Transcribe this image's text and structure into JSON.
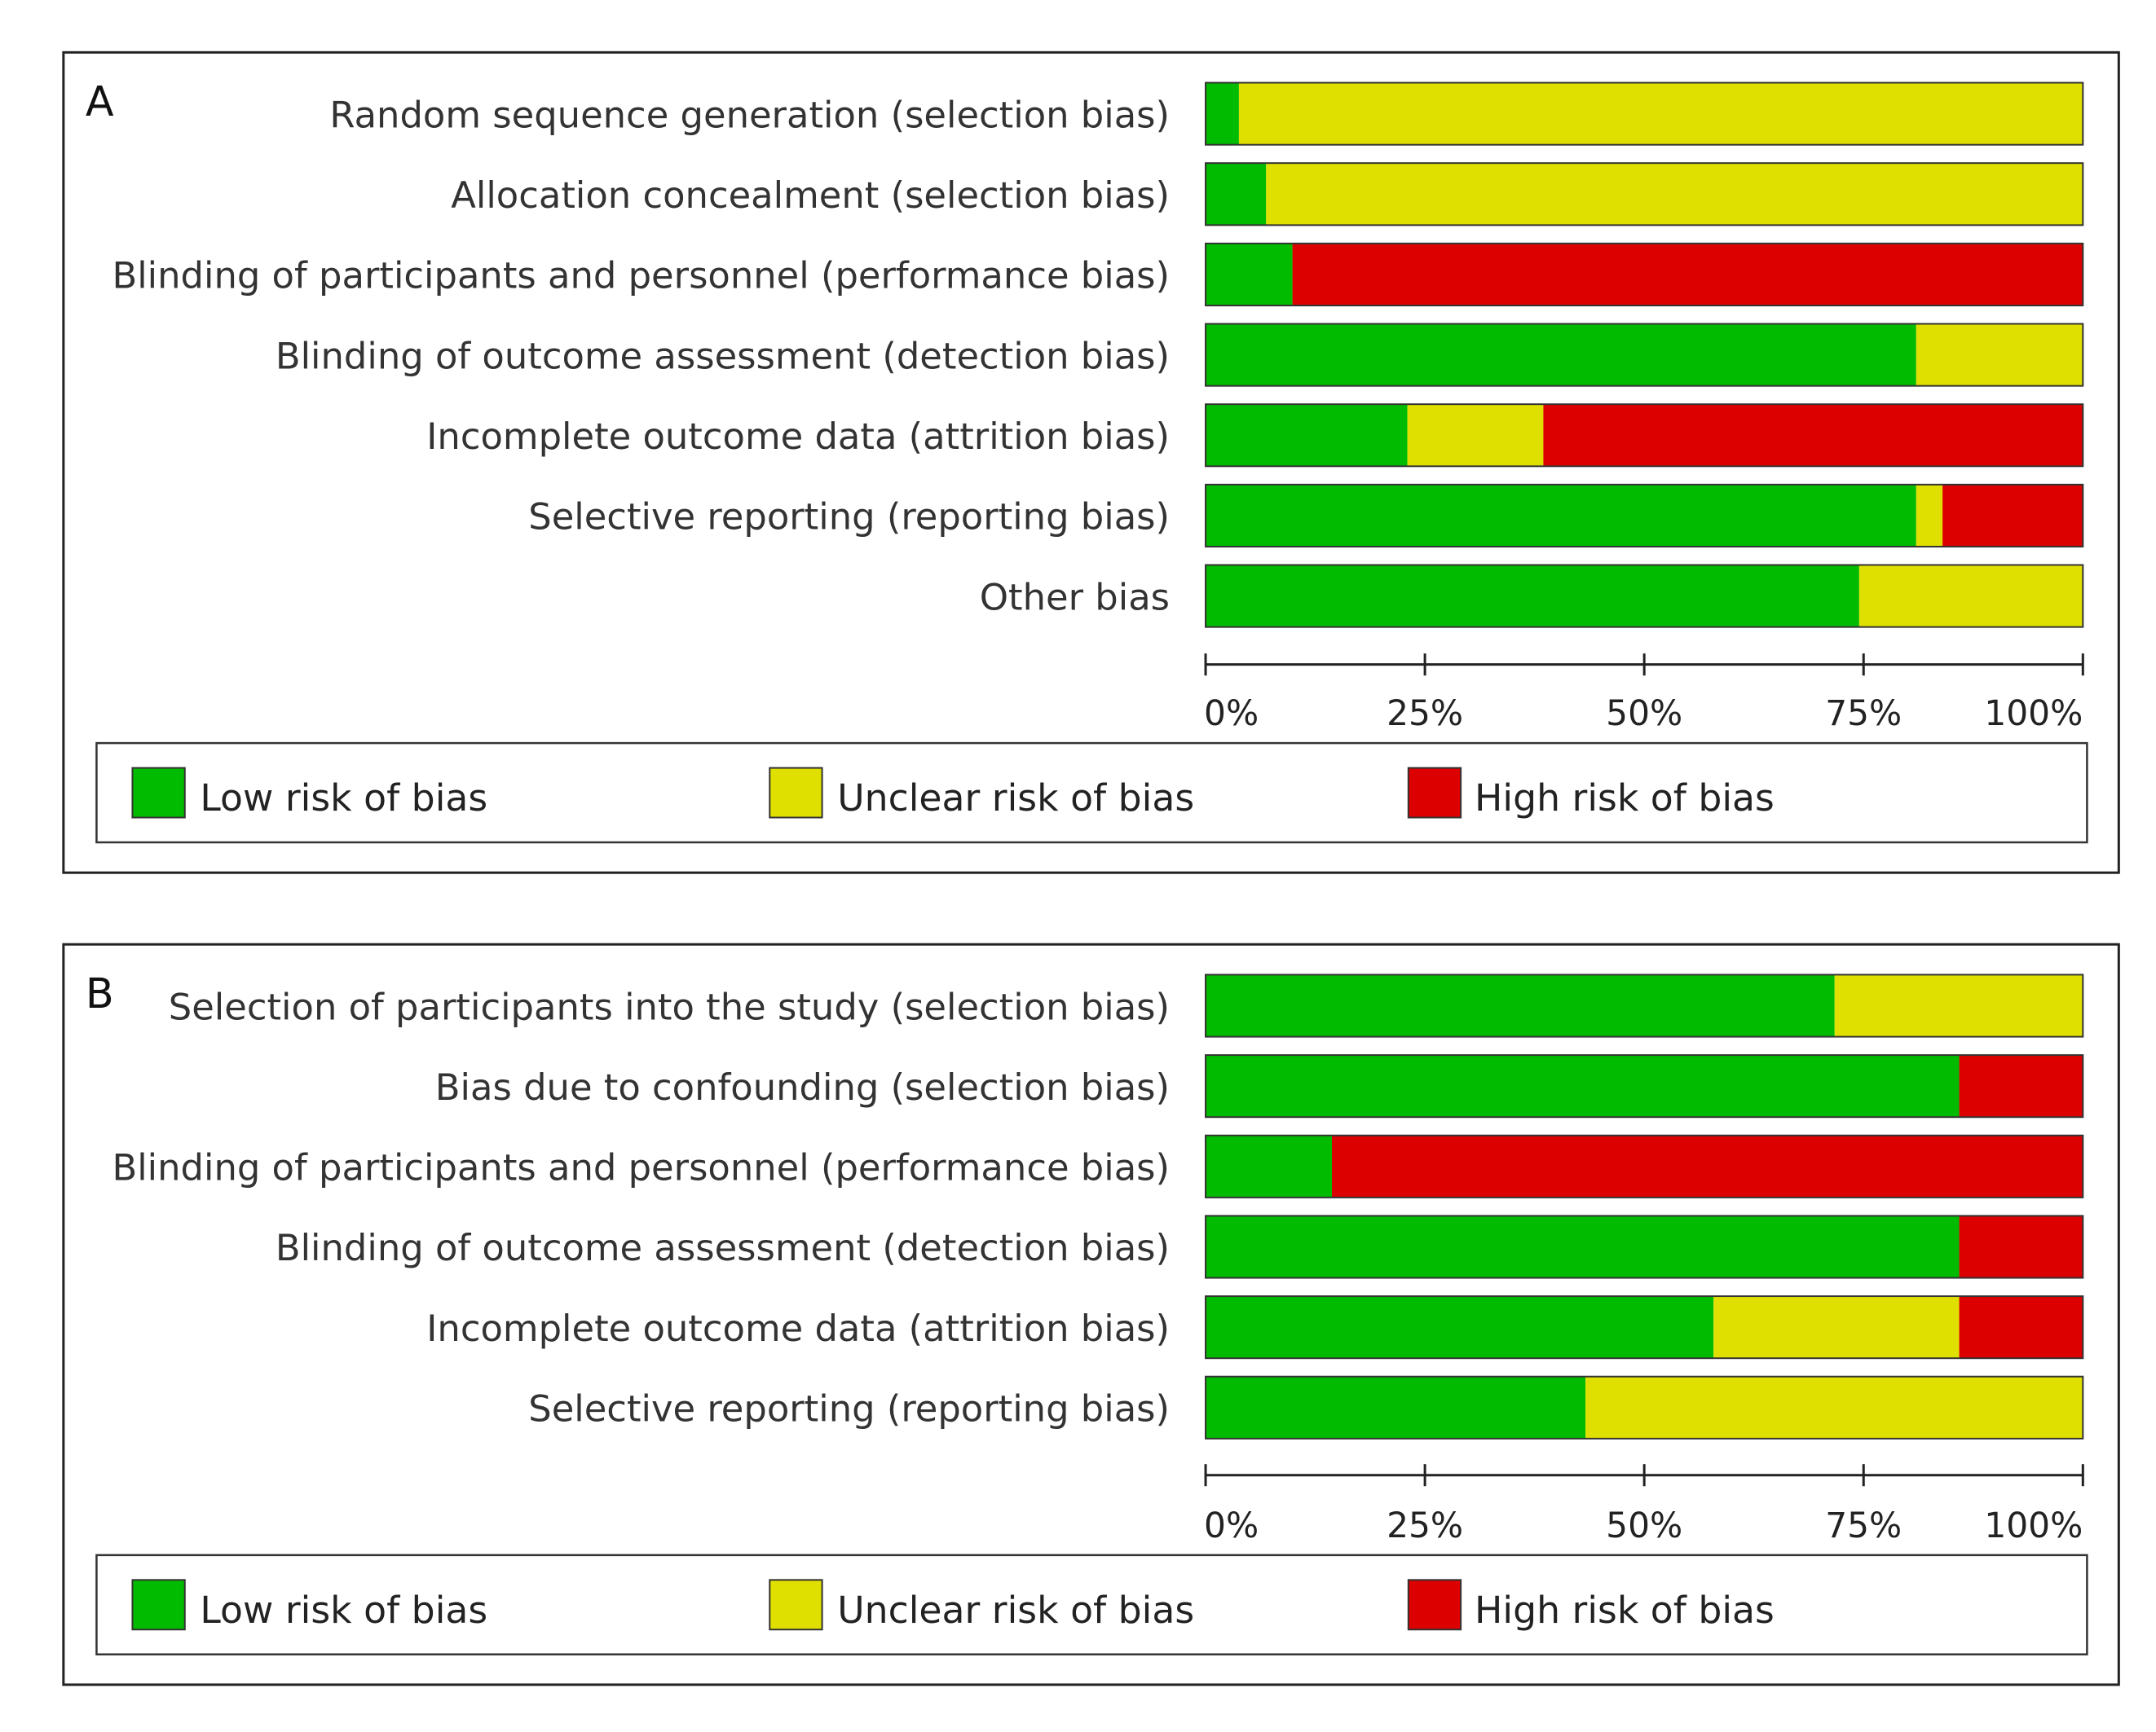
{
  "colors": {
    "low": "#00bb00",
    "unclear": "#e0e000",
    "high": "#dd0000"
  },
  "legend": {
    "low": "Low risk of bias",
    "unclear": "Unclear risk of bias",
    "high": "High risk of bias"
  },
  "chart_data": [
    {
      "type": "bar",
      "orientation": "horizontal",
      "stacked": true,
      "panel_label": "A",
      "categories": [
        "Random sequence generation (selection bias)",
        "Allocation concealment (selection bias)",
        "Blinding of participants and personnel (performance bias)",
        "Blinding of outcome assessment (detection bias)",
        "Incomplete outcome data (attrition bias)",
        "Selective reporting (reporting bias)",
        "Other bias"
      ],
      "series": [
        {
          "name": "Low risk of bias",
          "key": "low",
          "values": [
            3.8,
            6.9,
            9.9,
            81,
            23,
            81,
            74.5
          ]
        },
        {
          "name": "Unclear risk of bias",
          "key": "unclear",
          "values": [
            96.2,
            93.1,
            0,
            19,
            15.5,
            3,
            25.5
          ]
        },
        {
          "name": "High risk of bias",
          "key": "high",
          "values": [
            0,
            0,
            90.1,
            0,
            61.5,
            16,
            0
          ]
        }
      ],
      "x_ticks": [
        "0%",
        "25%",
        "50%",
        "75%",
        "100%"
      ],
      "xlim": [
        0,
        100
      ],
      "legend_position": "bottom"
    },
    {
      "type": "bar",
      "orientation": "horizontal",
      "stacked": true,
      "panel_label": "B",
      "categories": [
        "Selection of participants into the study (selection bias)",
        "Bias due to confounding (selection bias)",
        "Blinding of participants and personnel (performance bias)",
        "Blinding of outcome assessment (detection bias)",
        "Incomplete outcome data (attrition bias)",
        "Selective reporting (reporting bias)"
      ],
      "series": [
        {
          "name": "Low risk of bias",
          "key": "low",
          "values": [
            71.7,
            85.9,
            14.4,
            85.9,
            57.9,
            43.3
          ]
        },
        {
          "name": "Unclear risk of bias",
          "key": "unclear",
          "values": [
            28.3,
            0,
            0,
            0,
            28,
            56.7
          ]
        },
        {
          "name": "High risk of bias",
          "key": "high",
          "values": [
            0,
            14.1,
            85.6,
            14.1,
            14.1,
            0
          ]
        }
      ],
      "x_ticks": [
        "0%",
        "25%",
        "50%",
        "75%",
        "100%"
      ],
      "xlim": [
        0,
        100
      ],
      "legend_position": "bottom"
    }
  ]
}
